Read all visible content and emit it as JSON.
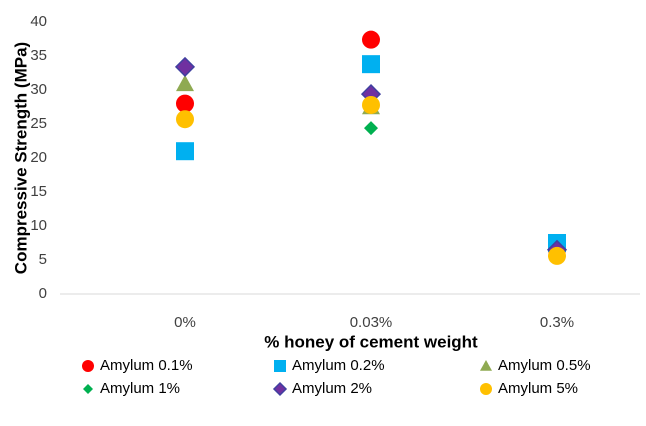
{
  "chart_data": {
    "type": "scatter",
    "xlabel": "% honey of cement weight",
    "ylabel": "Compressive Strength (MPa)",
    "categories": [
      "0%",
      "0.03%",
      "0.3%"
    ],
    "ylim": [
      0,
      40
    ],
    "yticks": [
      0,
      5,
      10,
      15,
      20,
      25,
      30,
      35,
      40
    ],
    "grid": false,
    "legend": "bottom",
    "series": [
      {
        "name": "Amylum 0.1%",
        "color": "#ff0000",
        "marker": "circle",
        "values": [
          28,
          37.4,
          6.5
        ]
      },
      {
        "name": "Amylum 0.2%",
        "color": "#00b0f0",
        "marker": "square",
        "values": [
          21,
          33.8,
          7.5
        ]
      },
      {
        "name": "Amylum 0.5%",
        "color": "#8faa52",
        "marker": "triangle",
        "values": [
          30.9,
          27.5,
          6.5
        ]
      },
      {
        "name": "Amylum 1%",
        "color": "#00b050",
        "marker": "diamond",
        "values": [
          33.3,
          24.4,
          6
        ]
      },
      {
        "name": "Amylum 2%",
        "color": "#7030a0",
        "marker": "diamond-outlined",
        "values": [
          33.4,
          29.4,
          6.5
        ]
      },
      {
        "name": "Amylum 5%",
        "color": "#ffc000",
        "marker": "circle",
        "values": [
          25.7,
          27.8,
          5.6
        ]
      }
    ]
  }
}
